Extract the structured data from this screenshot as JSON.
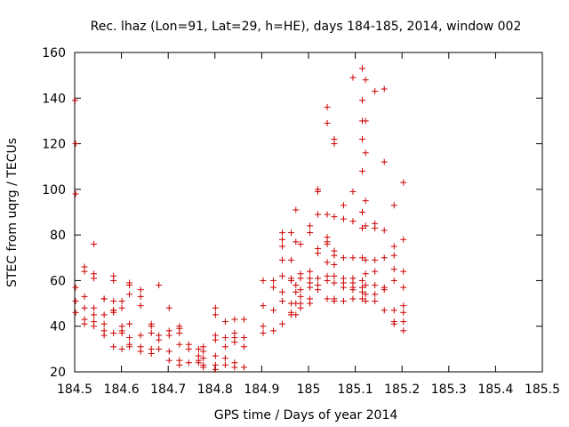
{
  "chart_data": {
    "type": "scatter",
    "title": "Rec. lhaz (Lon=91, Lat=29, h=HE), days 184-185, 2014, window 002",
    "xlabel": "GPS time / Days of year 2014",
    "ylabel": "STEC from uqrg / TECUs",
    "xlim": [
      184.5,
      185.5
    ],
    "ylim": [
      20,
      160
    ],
    "xticks": [
      184.5,
      184.6,
      184.7,
      184.8,
      184.9,
      185,
      185.1,
      185.2,
      185.3,
      185.4,
      185.5
    ],
    "xtick_labels": [
      "184.5",
      "184.6",
      "184.7",
      "184.8",
      "184.9",
      "185",
      "185.1",
      "185.2",
      "185.3",
      "185.4",
      "185.5"
    ],
    "yticks": [
      20,
      40,
      60,
      80,
      100,
      120,
      140,
      160
    ],
    "ytick_labels": [
      "20",
      "40",
      "60",
      "80",
      "100",
      "120",
      "140",
      "160"
    ],
    "grid": false,
    "marker": "+",
    "marker_color": "#cc0000",
    "series": [
      {
        "name": "STEC",
        "points": [
          [
            184.501,
            139
          ],
          [
            184.502,
            120
          ],
          [
            184.502,
            98
          ],
          [
            184.502,
            57
          ],
          [
            184.502,
            51
          ],
          [
            184.502,
            46
          ],
          [
            184.521,
            66
          ],
          [
            184.521,
            64
          ],
          [
            184.521,
            53
          ],
          [
            184.521,
            48
          ],
          [
            184.521,
            43
          ],
          [
            184.521,
            41
          ],
          [
            184.541,
            76
          ],
          [
            184.541,
            63
          ],
          [
            184.541,
            61
          ],
          [
            184.541,
            48
          ],
          [
            184.541,
            45
          ],
          [
            184.541,
            42
          ],
          [
            184.541,
            40
          ],
          [
            184.563,
            52
          ],
          [
            184.563,
            52
          ],
          [
            184.563,
            45
          ],
          [
            184.563,
            41
          ],
          [
            184.563,
            38
          ],
          [
            184.563,
            36
          ],
          [
            184.583,
            62
          ],
          [
            184.583,
            60
          ],
          [
            184.583,
            51
          ],
          [
            184.583,
            47
          ],
          [
            184.583,
            47
          ],
          [
            184.583,
            46
          ],
          [
            184.583,
            37
          ],
          [
            184.583,
            31
          ],
          [
            184.601,
            51
          ],
          [
            184.601,
            48
          ],
          [
            184.601,
            40
          ],
          [
            184.601,
            38
          ],
          [
            184.601,
            37
          ],
          [
            184.601,
            30
          ],
          [
            184.617,
            59
          ],
          [
            184.617,
            58
          ],
          [
            184.617,
            54
          ],
          [
            184.617,
            41
          ],
          [
            184.617,
            35
          ],
          [
            184.617,
            32
          ],
          [
            184.617,
            31
          ],
          [
            184.641,
            56
          ],
          [
            184.641,
            53
          ],
          [
            184.641,
            49
          ],
          [
            184.641,
            36
          ],
          [
            184.641,
            31
          ],
          [
            184.641,
            29
          ],
          [
            184.664,
            41
          ],
          [
            184.664,
            40
          ],
          [
            184.664,
            37
          ],
          [
            184.664,
            30
          ],
          [
            184.664,
            28
          ],
          [
            184.68,
            58
          ],
          [
            184.68,
            36
          ],
          [
            184.68,
            34
          ],
          [
            184.68,
            30
          ],
          [
            184.702,
            48
          ],
          [
            184.702,
            38
          ],
          [
            184.702,
            36
          ],
          [
            184.702,
            29
          ],
          [
            184.702,
            25
          ],
          [
            184.724,
            40
          ],
          [
            184.724,
            39
          ],
          [
            184.724,
            37
          ],
          [
            184.724,
            32
          ],
          [
            184.724,
            25
          ],
          [
            184.724,
            23
          ],
          [
            184.744,
            32
          ],
          [
            184.744,
            30
          ],
          [
            184.744,
            24
          ],
          [
            184.765,
            30
          ],
          [
            184.765,
            27
          ],
          [
            184.765,
            25
          ],
          [
            184.765,
            24
          ],
          [
            184.775,
            31
          ],
          [
            184.775,
            29
          ],
          [
            184.775,
            26
          ],
          [
            184.775,
            23
          ],
          [
            184.775,
            22
          ],
          [
            184.801,
            48
          ],
          [
            184.801,
            45
          ],
          [
            184.801,
            36
          ],
          [
            184.801,
            34
          ],
          [
            184.801,
            27
          ],
          [
            184.801,
            23
          ],
          [
            184.801,
            21
          ],
          [
            184.822,
            42
          ],
          [
            184.822,
            35
          ],
          [
            184.822,
            31
          ],
          [
            184.822,
            26
          ],
          [
            184.822,
            23
          ],
          [
            184.842,
            43
          ],
          [
            184.842,
            37
          ],
          [
            184.842,
            35
          ],
          [
            184.842,
            33
          ],
          [
            184.842,
            24
          ],
          [
            184.842,
            22
          ],
          [
            184.862,
            43
          ],
          [
            184.862,
            35
          ],
          [
            184.862,
            31
          ],
          [
            184.862,
            22
          ],
          [
            184.903,
            60
          ],
          [
            184.903,
            49
          ],
          [
            184.903,
            40
          ],
          [
            184.903,
            37
          ],
          [
            184.925,
            60
          ],
          [
            184.925,
            57
          ],
          [
            184.925,
            47
          ],
          [
            184.925,
            38
          ],
          [
            184.944,
            81
          ],
          [
            184.944,
            78
          ],
          [
            184.944,
            75
          ],
          [
            184.944,
            69
          ],
          [
            184.944,
            62
          ],
          [
            184.944,
            55
          ],
          [
            184.944,
            51
          ],
          [
            184.944,
            41
          ],
          [
            184.963,
            81
          ],
          [
            184.963,
            69
          ],
          [
            184.963,
            61
          ],
          [
            184.963,
            60
          ],
          [
            184.963,
            50
          ],
          [
            184.963,
            46
          ],
          [
            184.963,
            45
          ],
          [
            184.973,
            91
          ],
          [
            184.973,
            77
          ],
          [
            184.973,
            58
          ],
          [
            184.973,
            55
          ],
          [
            184.973,
            50
          ],
          [
            184.973,
            45
          ],
          [
            184.983,
            76
          ],
          [
            184.983,
            63
          ],
          [
            184.983,
            61
          ],
          [
            184.983,
            56
          ],
          [
            184.983,
            53
          ],
          [
            184.983,
            50
          ],
          [
            184.983,
            48
          ],
          [
            185.003,
            84
          ],
          [
            185.003,
            81
          ],
          [
            185.003,
            64
          ],
          [
            185.003,
            61
          ],
          [
            185.003,
            59
          ],
          [
            185.003,
            57
          ],
          [
            185.003,
            52
          ],
          [
            185.003,
            50
          ],
          [
            185.02,
            100
          ],
          [
            185.02,
            99
          ],
          [
            185.02,
            89
          ],
          [
            185.02,
            74
          ],
          [
            185.02,
            72
          ],
          [
            185.02,
            61
          ],
          [
            185.02,
            58
          ],
          [
            185.02,
            56
          ],
          [
            185.04,
            136
          ],
          [
            185.04,
            129
          ],
          [
            185.04,
            89
          ],
          [
            185.04,
            79
          ],
          [
            185.04,
            77
          ],
          [
            185.04,
            76
          ],
          [
            185.04,
            68
          ],
          [
            185.04,
            62
          ],
          [
            185.04,
            60
          ],
          [
            185.04,
            52
          ],
          [
            185.055,
            122
          ],
          [
            185.055,
            120
          ],
          [
            185.055,
            88
          ],
          [
            185.055,
            73
          ],
          [
            185.055,
            71
          ],
          [
            185.055,
            67
          ],
          [
            185.055,
            62
          ],
          [
            185.055,
            59
          ],
          [
            185.055,
            52
          ],
          [
            185.055,
            51
          ],
          [
            185.075,
            93
          ],
          [
            185.075,
            87
          ],
          [
            185.075,
            70
          ],
          [
            185.075,
            61
          ],
          [
            185.075,
            59
          ],
          [
            185.075,
            57
          ],
          [
            185.075,
            51
          ],
          [
            185.095,
            149
          ],
          [
            185.095,
            99
          ],
          [
            185.095,
            86
          ],
          [
            185.095,
            70
          ],
          [
            185.095,
            61
          ],
          [
            185.095,
            59
          ],
          [
            185.095,
            57
          ],
          [
            185.095,
            56
          ],
          [
            185.095,
            52
          ],
          [
            185.115,
            153
          ],
          [
            185.115,
            139
          ],
          [
            185.115,
            130
          ],
          [
            185.115,
            122
          ],
          [
            185.115,
            108
          ],
          [
            185.115,
            90
          ],
          [
            185.115,
            83
          ],
          [
            185.115,
            70
          ],
          [
            185.115,
            60
          ],
          [
            185.115,
            57
          ],
          [
            185.115,
            55
          ],
          [
            185.115,
            52
          ],
          [
            185.122,
            148
          ],
          [
            185.122,
            130
          ],
          [
            185.122,
            116
          ],
          [
            185.122,
            95
          ],
          [
            185.122,
            84
          ],
          [
            185.122,
            69
          ],
          [
            185.122,
            63
          ],
          [
            185.122,
            58
          ],
          [
            185.122,
            54
          ],
          [
            185.122,
            51
          ],
          [
            185.142,
            143
          ],
          [
            185.142,
            85
          ],
          [
            185.142,
            83
          ],
          [
            185.142,
            69
          ],
          [
            185.142,
            64
          ],
          [
            185.142,
            58
          ],
          [
            185.142,
            54
          ],
          [
            185.142,
            51
          ],
          [
            185.162,
            144
          ],
          [
            185.162,
            112
          ],
          [
            185.162,
            82
          ],
          [
            185.162,
            70
          ],
          [
            185.162,
            57
          ],
          [
            185.162,
            56
          ],
          [
            185.162,
            47
          ],
          [
            185.183,
            93
          ],
          [
            185.183,
            75
          ],
          [
            185.183,
            71
          ],
          [
            185.183,
            65
          ],
          [
            185.183,
            60
          ],
          [
            185.183,
            47
          ],
          [
            185.183,
            42
          ],
          [
            185.183,
            41
          ],
          [
            185.203,
            103
          ],
          [
            185.203,
            78
          ],
          [
            185.203,
            64
          ],
          [
            185.203,
            57
          ],
          [
            185.203,
            49
          ],
          [
            185.203,
            46
          ],
          [
            185.203,
            42
          ],
          [
            185.203,
            38
          ]
        ]
      }
    ]
  }
}
